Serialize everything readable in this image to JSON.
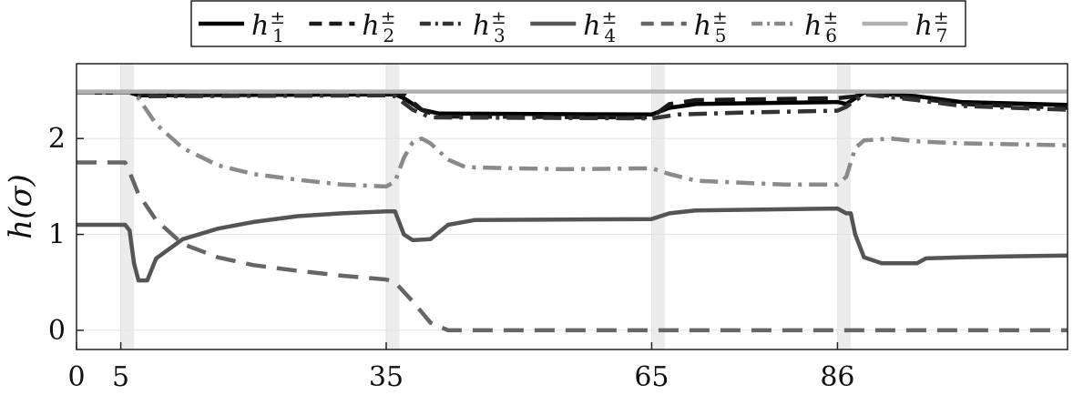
{
  "chart_data": {
    "type": "line",
    "title": "",
    "xlabel": "",
    "ylabel": "h(σ)",
    "xlim": [
      0,
      112
    ],
    "ylim": [
      -0.2,
      2.78
    ],
    "xticks": [
      "0",
      "5",
      "35",
      "65",
      "86"
    ],
    "xtick_values": [
      0,
      5,
      35,
      65,
      86
    ],
    "yticks": [
      "0",
      "1",
      "2"
    ],
    "ytick_values": [
      0,
      1,
      2
    ],
    "grid": true,
    "legend": "top-outside",
    "highlight_bands": [
      [
        5,
        6.5
      ],
      [
        35,
        36.5
      ],
      [
        65,
        66.5
      ],
      [
        86,
        87.5
      ]
    ],
    "series": [
      {
        "name": "h1±",
        "label_base": "h",
        "label_sub": "1",
        "label_sup": "±",
        "color": "#000000",
        "style": "solid",
        "points": [
          [
            0,
            2.48
          ],
          [
            6,
            2.48
          ],
          [
            7,
            2.45
          ],
          [
            35,
            2.46
          ],
          [
            36,
            2.46
          ],
          [
            37,
            2.42
          ],
          [
            39,
            2.3
          ],
          [
            41,
            2.26
          ],
          [
            65,
            2.25
          ],
          [
            67,
            2.32
          ],
          [
            70,
            2.36
          ],
          [
            86,
            2.38
          ],
          [
            87,
            2.36
          ],
          [
            89,
            2.48
          ],
          [
            95,
            2.44
          ],
          [
            100,
            2.38
          ],
          [
            112,
            2.35
          ]
        ]
      },
      {
        "name": "h2±",
        "label_base": "h",
        "label_sub": "2",
        "label_sup": "±",
        "color": "#1a1a1a",
        "style": "dashed",
        "points": [
          [
            0,
            2.48
          ],
          [
            6,
            2.48
          ],
          [
            7,
            2.46
          ],
          [
            35,
            2.47
          ],
          [
            37,
            2.46
          ],
          [
            39,
            2.3
          ],
          [
            41,
            2.23
          ],
          [
            65,
            2.22
          ],
          [
            67,
            2.36
          ],
          [
            70,
            2.4
          ],
          [
            86,
            2.42
          ],
          [
            88,
            2.44
          ],
          [
            89,
            2.47
          ],
          [
            95,
            2.42
          ],
          [
            100,
            2.36
          ],
          [
            112,
            2.32
          ]
        ]
      },
      {
        "name": "h3±",
        "label_base": "h",
        "label_sub": "3",
        "label_sup": "±",
        "color": "#333333",
        "style": "dashdot",
        "points": [
          [
            0,
            2.48
          ],
          [
            6,
            2.48
          ],
          [
            7,
            2.44
          ],
          [
            35,
            2.45
          ],
          [
            36,
            2.44
          ],
          [
            38,
            2.3
          ],
          [
            40,
            2.22
          ],
          [
            65,
            2.21
          ],
          [
            68,
            2.25
          ],
          [
            75,
            2.27
          ],
          [
            86,
            2.29
          ],
          [
            87,
            2.33
          ],
          [
            89,
            2.46
          ],
          [
            95,
            2.4
          ],
          [
            100,
            2.34
          ],
          [
            112,
            2.3
          ]
        ]
      },
      {
        "name": "h4±",
        "label_base": "h",
        "label_sub": "4",
        "label_sup": "±",
        "color": "#555555",
        "style": "solid",
        "points": [
          [
            0,
            1.1
          ],
          [
            5.5,
            1.1
          ],
          [
            6,
            1.04
          ],
          [
            6.5,
            0.7
          ],
          [
            7,
            0.52
          ],
          [
            8,
            0.52
          ],
          [
            9,
            0.75
          ],
          [
            12,
            0.95
          ],
          [
            16,
            1.06
          ],
          [
            20,
            1.13
          ],
          [
            25,
            1.19
          ],
          [
            30,
            1.22
          ],
          [
            35,
            1.24
          ],
          [
            36,
            1.24
          ],
          [
            37,
            1.0
          ],
          [
            38,
            0.94
          ],
          [
            40,
            0.95
          ],
          [
            42,
            1.1
          ],
          [
            45,
            1.15
          ],
          [
            65,
            1.16
          ],
          [
            67,
            1.22
          ],
          [
            70,
            1.25
          ],
          [
            86,
            1.27
          ],
          [
            87,
            1.22
          ],
          [
            87.5,
            1.22
          ],
          [
            88,
            1.0
          ],
          [
            89,
            0.76
          ],
          [
            91,
            0.7
          ],
          [
            95,
            0.7
          ],
          [
            96,
            0.75
          ],
          [
            100,
            0.76
          ],
          [
            105,
            0.77
          ],
          [
            112,
            0.78
          ]
        ]
      },
      {
        "name": "h5±",
        "label_base": "h",
        "label_sub": "5",
        "label_sup": "±",
        "color": "#666666",
        "style": "dashed",
        "points": [
          [
            0,
            1.75
          ],
          [
            5.5,
            1.75
          ],
          [
            6,
            1.65
          ],
          [
            7,
            1.42
          ],
          [
            9,
            1.15
          ],
          [
            12,
            0.9
          ],
          [
            16,
            0.76
          ],
          [
            20,
            0.68
          ],
          [
            25,
            0.62
          ],
          [
            30,
            0.57
          ],
          [
            35,
            0.53
          ],
          [
            36,
            0.5
          ],
          [
            38,
            0.3
          ],
          [
            40,
            0.08
          ],
          [
            42,
            0.0
          ],
          [
            112,
            0.0
          ]
        ]
      },
      {
        "name": "h6±",
        "label_base": "h",
        "label_sub": "6",
        "label_sup": "±",
        "color": "#8a8a8a",
        "style": "dashdot",
        "points": [
          [
            0,
            2.48
          ],
          [
            6,
            2.48
          ],
          [
            7,
            2.42
          ],
          [
            9,
            2.15
          ],
          [
            12,
            1.9
          ],
          [
            16,
            1.72
          ],
          [
            20,
            1.63
          ],
          [
            25,
            1.57
          ],
          [
            30,
            1.52
          ],
          [
            35,
            1.5
          ],
          [
            36,
            1.55
          ],
          [
            37,
            1.8
          ],
          [
            38,
            1.96
          ],
          [
            39,
            2.0
          ],
          [
            40,
            1.95
          ],
          [
            42,
            1.78
          ],
          [
            44,
            1.7
          ],
          [
            55,
            1.68
          ],
          [
            65,
            1.69
          ],
          [
            67,
            1.63
          ],
          [
            70,
            1.56
          ],
          [
            80,
            1.52
          ],
          [
            86,
            1.52
          ],
          [
            87,
            1.6
          ],
          [
            88,
            1.9
          ],
          [
            89,
            1.98
          ],
          [
            92,
            2.0
          ],
          [
            95,
            1.97
          ],
          [
            100,
            1.95
          ],
          [
            112,
            1.93
          ]
        ]
      },
      {
        "name": "h7±",
        "label_base": "h",
        "label_sub": "7",
        "label_sup": "±",
        "color": "#b0b0b0",
        "style": "solid",
        "points": [
          [
            0,
            2.49
          ],
          [
            112,
            2.49
          ]
        ]
      }
    ]
  }
}
